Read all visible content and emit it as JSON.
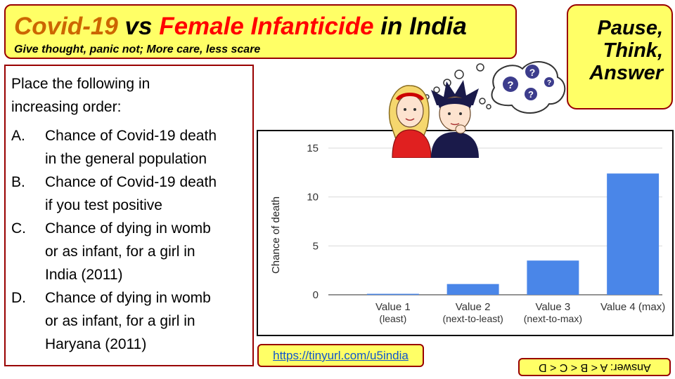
{
  "header": {
    "title_part1": "Covid-19",
    "title_part2": " vs ",
    "title_part3": "Female Infanticide",
    "title_part4": " in India",
    "subtitle": "Give thought, panic not; More care, less scare"
  },
  "pause_box": {
    "lines": [
      "Pause,",
      "Think,",
      "Answer"
    ]
  },
  "question": {
    "prompt_line1": "Place the following in",
    "prompt_line2": "increasing order:",
    "options": [
      {
        "letter": "A.",
        "lines": [
          "Chance of Covid-19 death",
          "in the general population"
        ]
      },
      {
        "letter": "B.",
        "lines": [
          "Chance of Covid-19 death",
          "if you test positive"
        ]
      },
      {
        "letter": "C.",
        "lines": [
          "Chance of dying in womb",
          "or as infant, for a girl in",
          "India (2011)"
        ]
      },
      {
        "letter": "D.",
        "lines": [
          "Chance of dying in womb",
          "or as infant, for a girl in",
          "Haryana (2011)"
        ]
      }
    ]
  },
  "link": {
    "text": "https://tinyurl.com/u5india"
  },
  "answer": {
    "text": "Answer: A < B < C < D"
  },
  "colors": {
    "yellow": "#ffff66",
    "border": "#990000",
    "bar": "#4a86e8",
    "covid": "#cc6600",
    "infanticide": "#ff0000"
  },
  "chart_data": {
    "type": "bar",
    "title": "",
    "xlabel": "",
    "ylabel": "Chance of death",
    "ylim": [
      0,
      15
    ],
    "yticks": [
      "0",
      "5",
      "10",
      "15"
    ],
    "grid": true,
    "categories": [
      {
        "line1": "Value 1",
        "line2": "(least)"
      },
      {
        "line1": "Value 2",
        "line2": "(next-to-least)"
      },
      {
        "line1": "Value 3",
        "line2": "(next-to-max)"
      },
      {
        "line1": "Value 4 (max)",
        "line2": ""
      }
    ],
    "values": [
      0.1,
      1.1,
      3.5,
      12.4
    ]
  }
}
